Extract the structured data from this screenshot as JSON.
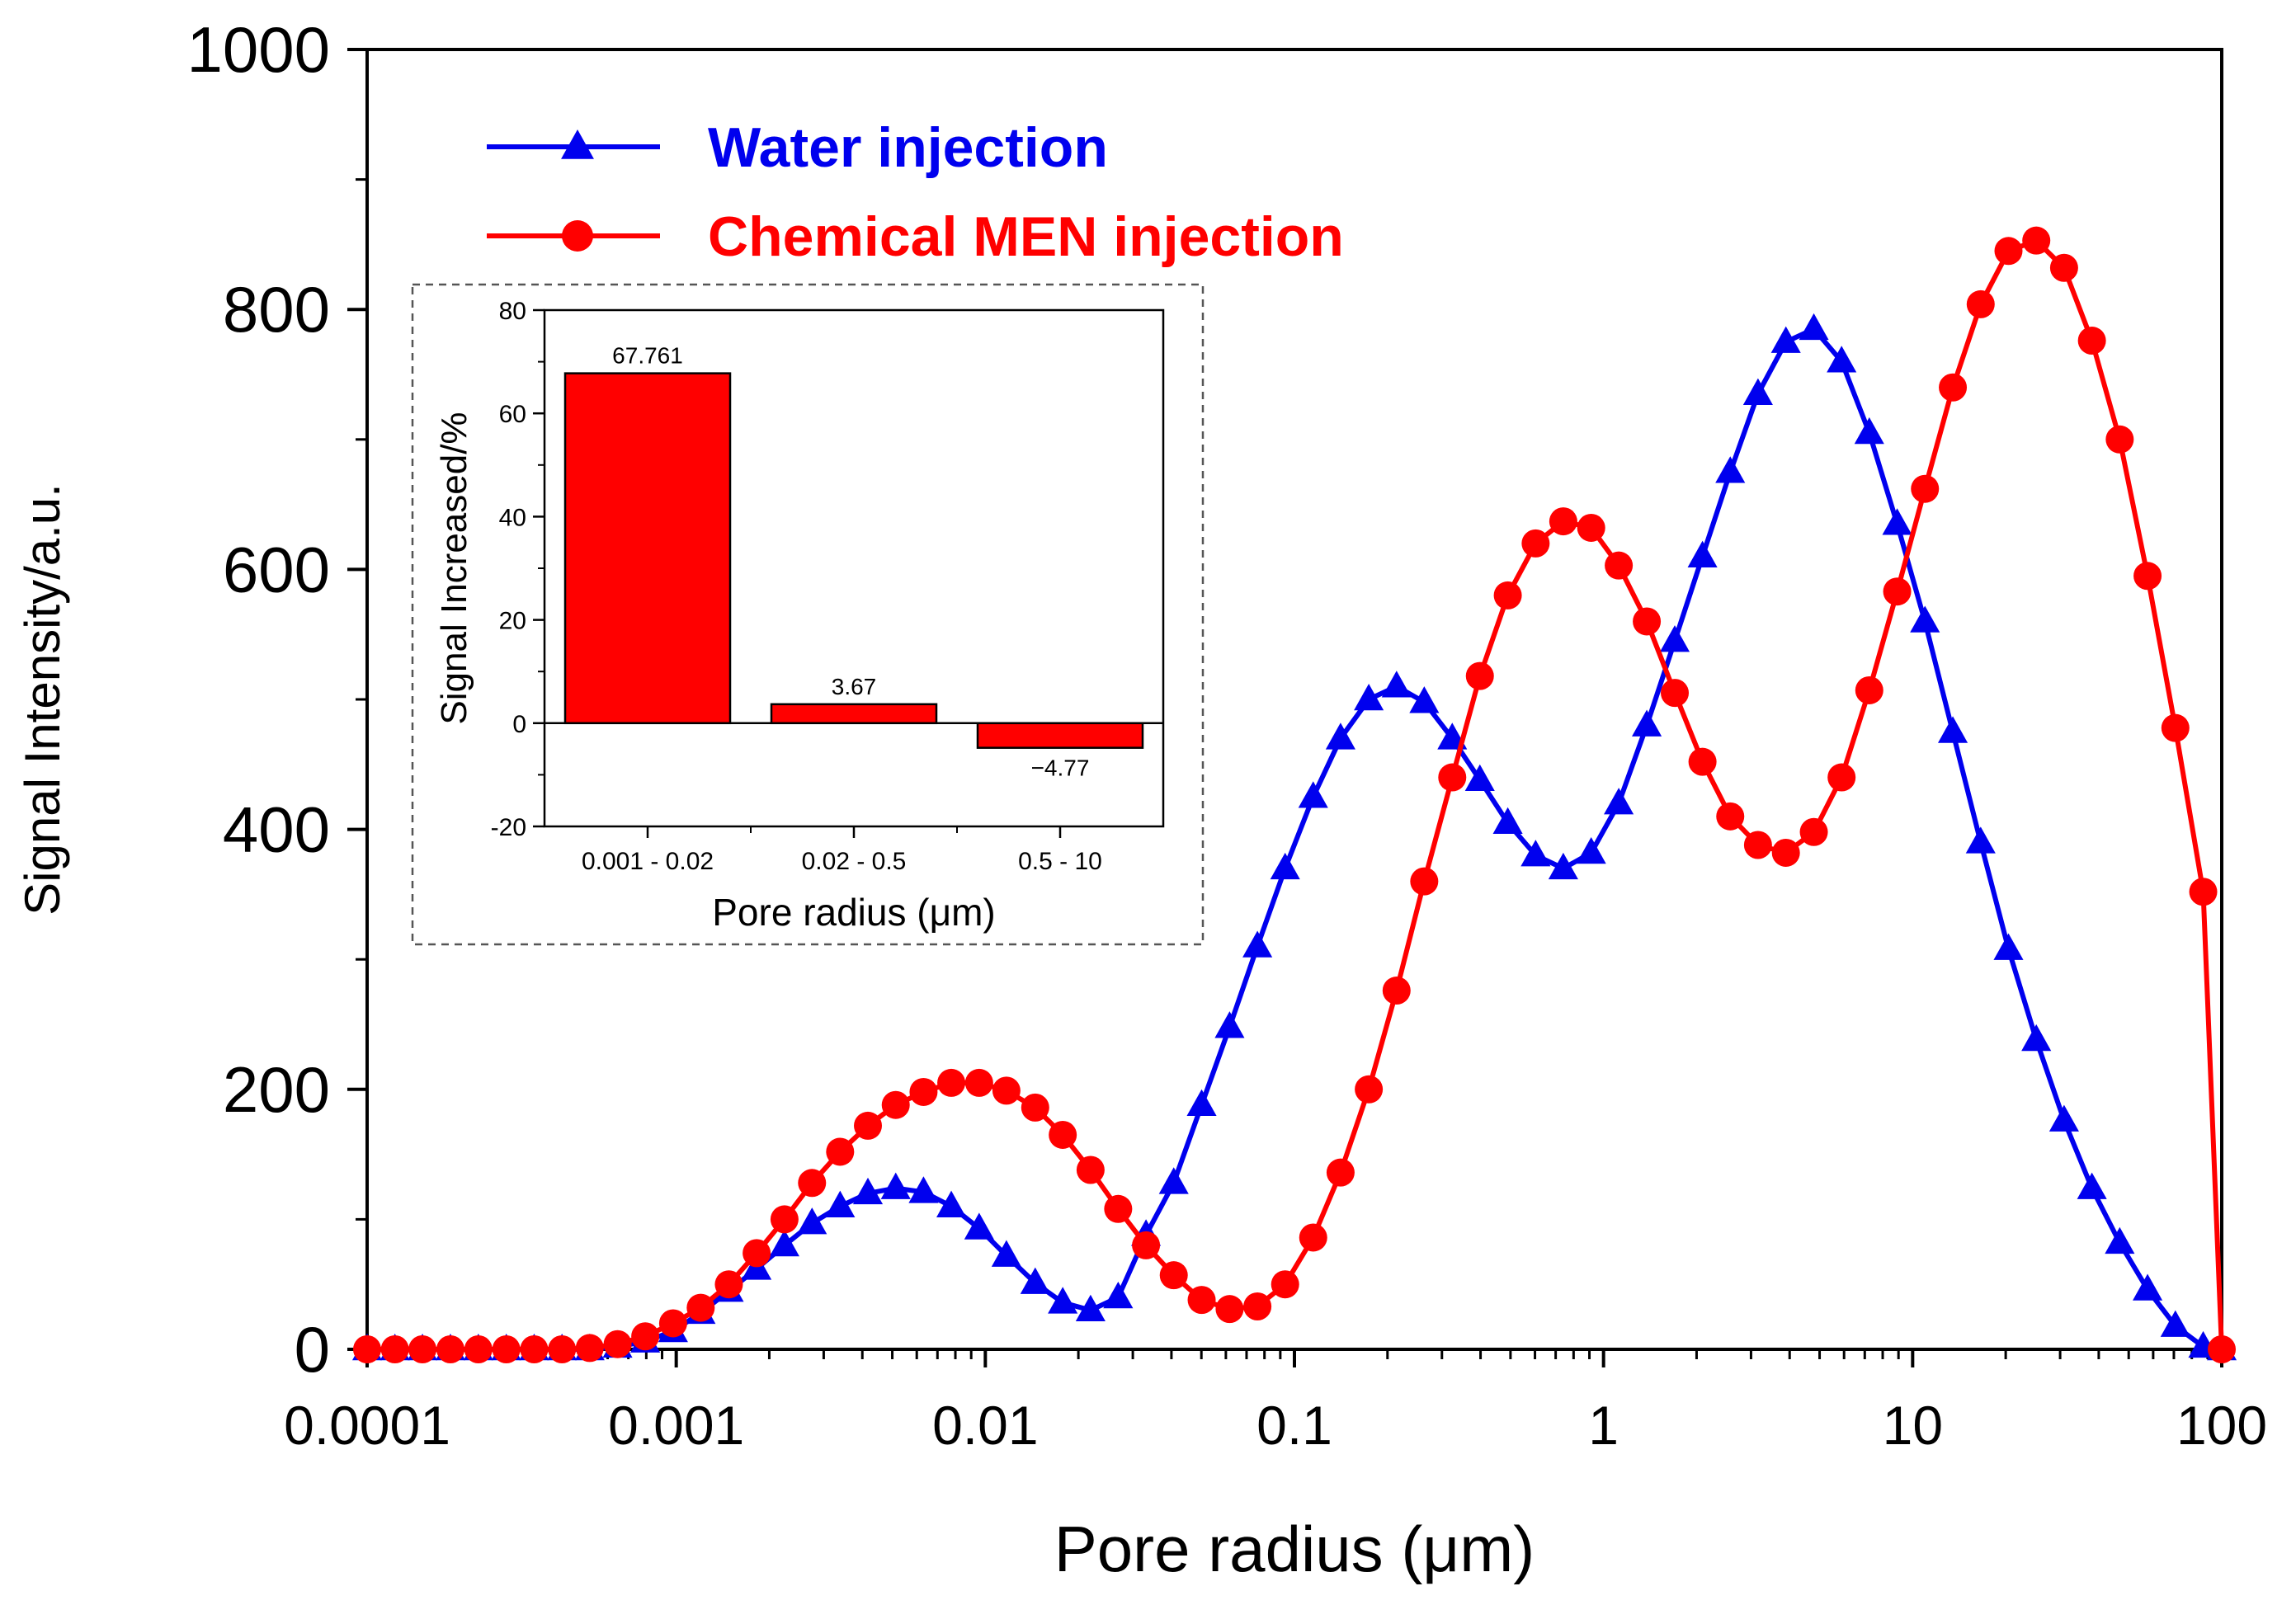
{
  "chart_data": [
    {
      "id": "main",
      "type": "line",
      "xscale": "log",
      "xlabel": "Pore radius (μm)",
      "ylabel": "Signal Intensity/a.u.",
      "xlim": [
        0.0001,
        100
      ],
      "ylim": [
        0,
        1000
      ],
      "xticks": [
        0.0001,
        0.001,
        0.01,
        0.1,
        1,
        10,
        100
      ],
      "xtick_labels": [
        "0.0001",
        "0.001",
        "0.01",
        "0.1",
        "1",
        "10",
        "100"
      ],
      "yticks": [
        0,
        200,
        400,
        600,
        800,
        1000
      ],
      "ytick_labels": [
        "0",
        "200",
        "400",
        "600",
        "800",
        "1000"
      ],
      "legend_position": "top-left",
      "series": [
        {
          "name": "Water injection",
          "color": "#0000ee",
          "marker": "triangle",
          "points": [
            [
              0.0001,
              0
            ],
            [
              0.000123,
              0
            ],
            [
              0.000151,
              0
            ],
            [
              0.000186,
              0
            ],
            [
              0.000229,
              0
            ],
            [
              0.000282,
              0
            ],
            [
              0.000347,
              0
            ],
            [
              0.000427,
              0
            ],
            [
              0.000525,
              0
            ],
            [
              0.000646,
              2
            ],
            [
              0.000794,
              6
            ],
            [
              0.000977,
              14
            ],
            [
              0.0012,
              28
            ],
            [
              0.00148,
              45
            ],
            [
              0.00182,
              62
            ],
            [
              0.00224,
              80
            ],
            [
              0.00275,
              97
            ],
            [
              0.00339,
              110
            ],
            [
              0.00417,
              120
            ],
            [
              0.00513,
              124
            ],
            [
              0.00631,
              121
            ],
            [
              0.00776,
              110
            ],
            [
              0.00955,
              93
            ],
            [
              0.0117,
              72
            ],
            [
              0.0145,
              51
            ],
            [
              0.0178,
              36
            ],
            [
              0.0219,
              30
            ],
            [
              0.0269,
              40
            ],
            [
              0.0331,
              88
            ],
            [
              0.0407,
              128
            ],
            [
              0.0501,
              188
            ],
            [
              0.0617,
              248
            ],
            [
              0.0759,
              310
            ],
            [
              0.0933,
              370
            ],
            [
              0.115,
              425
            ],
            [
              0.141,
              470
            ],
            [
              0.174,
              500
            ],
            [
              0.214,
              510
            ],
            [
              0.263,
              498
            ],
            [
              0.324,
              470
            ],
            [
              0.398,
              438
            ],
            [
              0.49,
              405
            ],
            [
              0.603,
              380
            ],
            [
              0.741,
              370
            ],
            [
              0.912,
              382
            ],
            [
              1.12,
              420
            ],
            [
              1.38,
              480
            ],
            [
              1.7,
              545
            ],
            [
              2.09,
              610
            ],
            [
              2.57,
              675
            ],
            [
              3.16,
              735
            ],
            [
              3.89,
              775
            ],
            [
              4.79,
              785
            ],
            [
              5.89,
              760
            ],
            [
              7.24,
              705
            ],
            [
              8.91,
              635
            ],
            [
              10.96,
              560
            ],
            [
              13.49,
              475
            ],
            [
              16.6,
              390
            ],
            [
              20.42,
              308
            ],
            [
              25.12,
              238
            ],
            [
              30.9,
              176
            ],
            [
              38.02,
              124
            ],
            [
              46.77,
              82
            ],
            [
              57.54,
              46
            ],
            [
              70.79,
              18
            ],
            [
              87.1,
              2
            ],
            [
              100,
              0
            ]
          ]
        },
        {
          "name": "Chemical MEN injection",
          "color": "#ff0000",
          "marker": "circle",
          "points": [
            [
              0.0001,
              0
            ],
            [
              0.000123,
              0
            ],
            [
              0.000151,
              0
            ],
            [
              0.000186,
              0
            ],
            [
              0.000229,
              0
            ],
            [
              0.000282,
              0
            ],
            [
              0.000347,
              0
            ],
            [
              0.000427,
              0
            ],
            [
              0.000525,
              1
            ],
            [
              0.000646,
              4
            ],
            [
              0.000794,
              10
            ],
            [
              0.000977,
              20
            ],
            [
              0.0012,
              32
            ],
            [
              0.00148,
              50
            ],
            [
              0.00182,
              74
            ],
            [
              0.00224,
              100
            ],
            [
              0.00275,
              128
            ],
            [
              0.00339,
              152
            ],
            [
              0.00417,
              172
            ],
            [
              0.00513,
              188
            ],
            [
              0.00631,
              198
            ],
            [
              0.00776,
              205
            ],
            [
              0.00955,
              205
            ],
            [
              0.0117,
              199
            ],
            [
              0.0145,
              186
            ],
            [
              0.0178,
              165
            ],
            [
              0.0219,
              138
            ],
            [
              0.0269,
              108
            ],
            [
              0.0331,
              80
            ],
            [
              0.0407,
              57
            ],
            [
              0.0501,
              38
            ],
            [
              0.0617,
              31
            ],
            [
              0.0759,
              33
            ],
            [
              0.0933,
              50
            ],
            [
              0.115,
              86
            ],
            [
              0.141,
              136
            ],
            [
              0.174,
              200
            ],
            [
              0.214,
              276
            ],
            [
              0.263,
              360
            ],
            [
              0.324,
              440
            ],
            [
              0.398,
              518
            ],
            [
              0.49,
              580
            ],
            [
              0.603,
              620
            ],
            [
              0.741,
              637
            ],
            [
              0.912,
              632
            ],
            [
              1.12,
              603
            ],
            [
              1.38,
              560
            ],
            [
              1.7,
              505
            ],
            [
              2.09,
              452
            ],
            [
              2.57,
              410
            ],
            [
              3.16,
              388
            ],
            [
              3.89,
              382
            ],
            [
              4.79,
              398
            ],
            [
              5.89,
              440
            ],
            [
              7.24,
              507
            ],
            [
              8.91,
              583
            ],
            [
              10.96,
              662
            ],
            [
              13.49,
              740
            ],
            [
              16.6,
              804
            ],
            [
              20.42,
              845
            ],
            [
              25.12,
              853
            ],
            [
              30.9,
              832
            ],
            [
              38.02,
              776
            ],
            [
              46.77,
              700
            ],
            [
              57.54,
              595
            ],
            [
              70.79,
              478
            ],
            [
              87.1,
              352
            ],
            [
              100,
              0
            ]
          ]
        }
      ]
    },
    {
      "id": "inset",
      "type": "bar",
      "xlabel": "Pore radius (μm)",
      "ylabel": "Signal Increased/%",
      "categories": [
        "0.001 - 0.02",
        "0.02 - 0.5",
        "0.5 - 10"
      ],
      "values": [
        67.761,
        3.67,
        -4.77
      ],
      "value_labels": [
        "67.761",
        "3.67",
        "−4.77"
      ],
      "ylim": [
        -20,
        80
      ],
      "yticks": [
        -20,
        0,
        20,
        40,
        60,
        80
      ],
      "ytick_labels": [
        "-20",
        "0",
        "20",
        "40",
        "60",
        "80"
      ],
      "color": "#ff0000"
    }
  ]
}
